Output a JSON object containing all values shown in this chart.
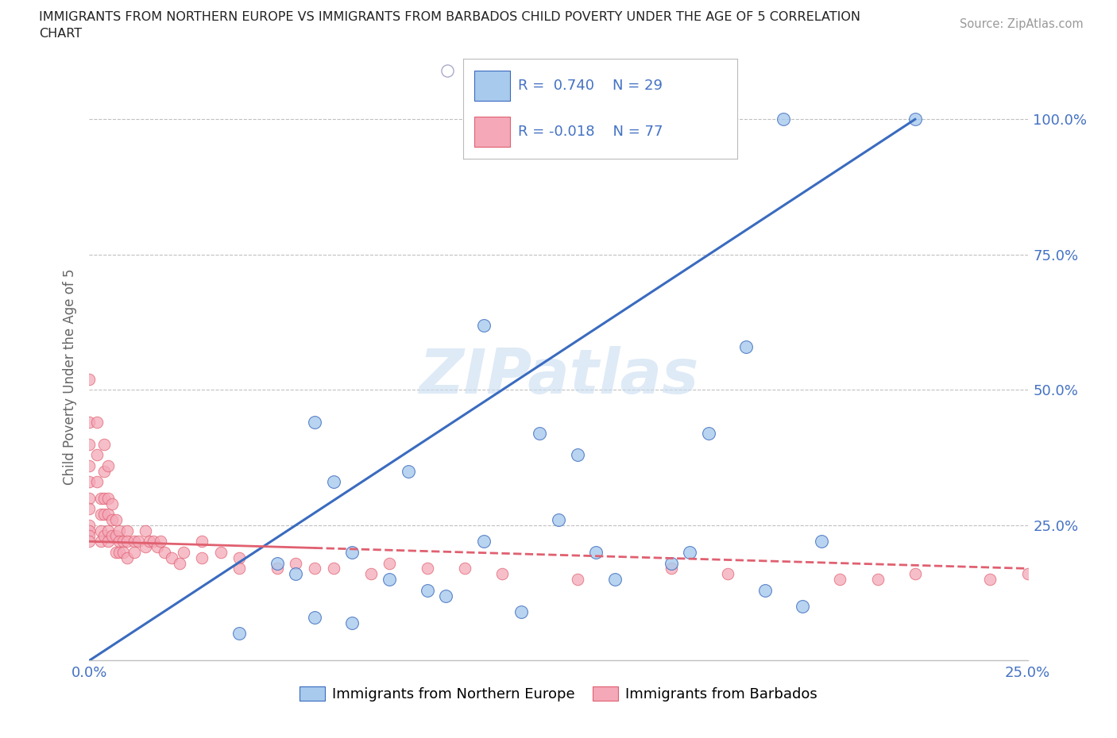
{
  "title_line1": "IMMIGRANTS FROM NORTHERN EUROPE VS IMMIGRANTS FROM BARBADOS CHILD POVERTY UNDER THE AGE OF 5 CORRELATION",
  "title_line2": "CHART",
  "source": "Source: ZipAtlas.com",
  "ylabel_label": "Child Poverty Under the Age of 5",
  "xlim": [
    0.0,
    0.25
  ],
  "ylim": [
    0.0,
    1.05
  ],
  "R_blue": 0.74,
  "N_blue": 29,
  "R_pink": -0.018,
  "N_pink": 77,
  "blue_color": "#A8CAED",
  "pink_color": "#F4A8B8",
  "blue_line_color": "#3A6BBF",
  "pink_line_color": "#E06070",
  "blue_scatter_x": [
    0.185,
    0.22,
    0.105,
    0.175,
    0.06,
    0.12,
    0.165,
    0.13,
    0.085,
    0.065,
    0.125,
    0.105,
    0.07,
    0.05,
    0.055,
    0.08,
    0.09,
    0.195,
    0.135,
    0.155,
    0.095,
    0.16,
    0.18,
    0.19,
    0.14,
    0.115,
    0.07,
    0.04,
    0.06
  ],
  "blue_scatter_y": [
    1.0,
    1.0,
    0.62,
    0.58,
    0.44,
    0.42,
    0.42,
    0.38,
    0.35,
    0.33,
    0.26,
    0.22,
    0.2,
    0.18,
    0.16,
    0.15,
    0.13,
    0.22,
    0.2,
    0.18,
    0.12,
    0.2,
    0.13,
    0.1,
    0.15,
    0.09,
    0.07,
    0.05,
    0.08
  ],
  "pink_scatter_x": [
    0.0,
    0.0,
    0.0,
    0.0,
    0.0,
    0.0,
    0.0,
    0.0,
    0.0,
    0.0,
    0.0,
    0.002,
    0.002,
    0.002,
    0.003,
    0.003,
    0.003,
    0.003,
    0.004,
    0.004,
    0.004,
    0.004,
    0.004,
    0.005,
    0.005,
    0.005,
    0.005,
    0.005,
    0.006,
    0.006,
    0.006,
    0.007,
    0.007,
    0.007,
    0.008,
    0.008,
    0.008,
    0.009,
    0.009,
    0.01,
    0.01,
    0.01,
    0.012,
    0.012,
    0.013,
    0.015,
    0.015,
    0.016,
    0.017,
    0.018,
    0.019,
    0.02,
    0.022,
    0.024,
    0.025,
    0.03,
    0.03,
    0.035,
    0.04,
    0.04,
    0.05,
    0.055,
    0.06,
    0.065,
    0.075,
    0.08,
    0.09,
    0.1,
    0.11,
    0.13,
    0.155,
    0.17,
    0.2,
    0.21,
    0.22,
    0.24,
    0.25
  ],
  "pink_scatter_y": [
    0.52,
    0.44,
    0.4,
    0.36,
    0.33,
    0.3,
    0.28,
    0.25,
    0.24,
    0.23,
    0.22,
    0.44,
    0.38,
    0.33,
    0.3,
    0.27,
    0.24,
    0.22,
    0.4,
    0.35,
    0.3,
    0.27,
    0.23,
    0.36,
    0.3,
    0.27,
    0.24,
    0.22,
    0.29,
    0.26,
    0.23,
    0.26,
    0.23,
    0.2,
    0.24,
    0.22,
    0.2,
    0.22,
    0.2,
    0.24,
    0.22,
    0.19,
    0.22,
    0.2,
    0.22,
    0.24,
    0.21,
    0.22,
    0.22,
    0.21,
    0.22,
    0.2,
    0.19,
    0.18,
    0.2,
    0.22,
    0.19,
    0.2,
    0.19,
    0.17,
    0.17,
    0.18,
    0.17,
    0.17,
    0.16,
    0.18,
    0.17,
    0.17,
    0.16,
    0.15,
    0.17,
    0.16,
    0.15,
    0.15,
    0.16,
    0.15,
    0.16
  ],
  "blue_line_x": [
    0.0,
    0.22
  ],
  "blue_line_y": [
    0.0,
    1.0
  ],
  "pink_line_start_y": 0.22,
  "pink_line_end_y": 0.17,
  "tick_color": "#4472C4",
  "grid_color": "#C0C0C0",
  "ylabel_color": "#666666",
  "watermark_color": "#C8DCF0"
}
